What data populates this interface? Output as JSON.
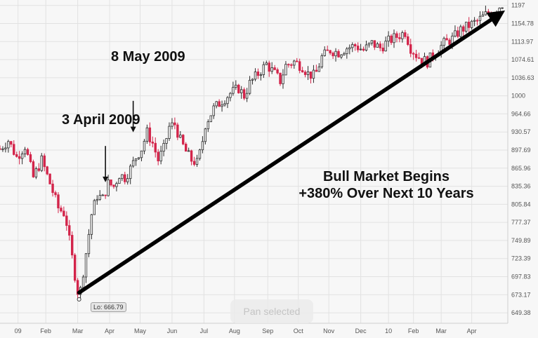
{
  "chart_data": {
    "type": "candlestick",
    "title": "",
    "xlabel": "",
    "ylabel": "",
    "x_ticks": [
      "09",
      "Feb",
      "Mar",
      "Apr",
      "May",
      "Jun",
      "Jul",
      "Aug",
      "Sep",
      "Oct",
      "Nov",
      "Dec",
      "10",
      "Feb",
      "Mar",
      "Apr"
    ],
    "y_ticks": [
      "1197",
      "1154.78",
      "1113.97",
      "1074.61",
      "1036.63",
      "1000",
      "964.66",
      "930.57",
      "897.69",
      "865.96",
      "835.36",
      "805.84",
      "777.37",
      "749.89",
      "723.39",
      "697.83",
      "673.17",
      "649.38"
    ],
    "ylim": [
      636,
      1210
    ],
    "scale": "log",
    "close_path": [
      [
        0,
        900
      ],
      [
        3,
        915
      ],
      [
        6,
        885
      ],
      [
        9,
        905
      ],
      [
        12,
        850
      ],
      [
        15,
        880
      ],
      [
        18,
        840
      ],
      [
        21,
        800
      ],
      [
        23.5,
        790
      ],
      [
        25,
        750
      ],
      [
        27,
        700
      ],
      [
        28.5,
        667
      ],
      [
        30,
        705
      ],
      [
        31.5,
        745
      ],
      [
        33,
        790
      ],
      [
        35,
        820
      ],
      [
        37,
        815
      ],
      [
        39,
        840
      ],
      [
        41,
        835
      ],
      [
        43,
        855
      ],
      [
        45,
        850
      ],
      [
        47,
        865
      ],
      [
        49,
        885
      ],
      [
        51,
        900
      ],
      [
        53,
        930
      ],
      [
        55,
        910
      ],
      [
        57,
        880
      ],
      [
        59,
        900
      ],
      [
        61,
        940
      ],
      [
        63,
        945
      ],
      [
        65,
        915
      ],
      [
        67,
        895
      ],
      [
        69,
        880
      ],
      [
        71,
        875
      ],
      [
        72.5,
        900
      ],
      [
        74,
        945
      ],
      [
        77,
        975
      ],
      [
        80,
        990
      ],
      [
        83,
        1005
      ],
      [
        86,
        1015
      ],
      [
        88,
        1000
      ],
      [
        90,
        1025
      ],
      [
        93,
        1045
      ],
      [
        96,
        1065
      ],
      [
        99,
        1045
      ],
      [
        101,
        1030
      ],
      [
        103,
        1062
      ],
      [
        106,
        1070
      ],
      [
        109,
        1060
      ],
      [
        111,
        1045
      ],
      [
        113.5,
        1040
      ],
      [
        116,
        1080
      ],
      [
        119,
        1095
      ],
      [
        122,
        1090
      ],
      [
        125,
        1100
      ],
      [
        128,
        1105
      ],
      [
        131,
        1095
      ],
      [
        134,
        1110
      ],
      [
        137,
        1100
      ],
      [
        140,
        1115
      ],
      [
        143,
        1125
      ],
      [
        146,
        1135
      ],
      [
        148,
        1100
      ],
      [
        150,
        1085
      ],
      [
        152,
        1075
      ],
      [
        154,
        1070
      ],
      [
        156,
        1085
      ],
      [
        158,
        1098
      ],
      [
        160,
        1110
      ],
      [
        163,
        1120
      ],
      [
        166,
        1140
      ],
      [
        169,
        1150
      ],
      [
        172,
        1160
      ],
      [
        175,
        1175
      ],
      [
        178,
        1185
      ],
      [
        181,
        1200
      ]
    ],
    "trend_arrow": {
      "from": [
        28.5,
        676
      ],
      "to": [
        182,
        1185
      ]
    },
    "arrows": [
      {
        "label": "3 April 2009",
        "x": 38,
        "y_from": 905,
        "y_to": 842
      },
      {
        "label": "8 May 2009",
        "x": 48,
        "y_from": 990,
        "y_to": 930
      }
    ]
  },
  "annotations": {
    "may": "8 May 2009",
    "april": "3 April 2009",
    "bull_line1": "Bull Market Begins",
    "bull_line2": "+380% Over Next 10 Years",
    "low": "Lo: 666.79"
  },
  "toast": "Pan selected",
  "colors": {
    "up": "#2b2b2b",
    "down": "#d3244a",
    "grid": "#e2e2e2",
    "axis_text": "#555555",
    "trend": "#000000"
  }
}
